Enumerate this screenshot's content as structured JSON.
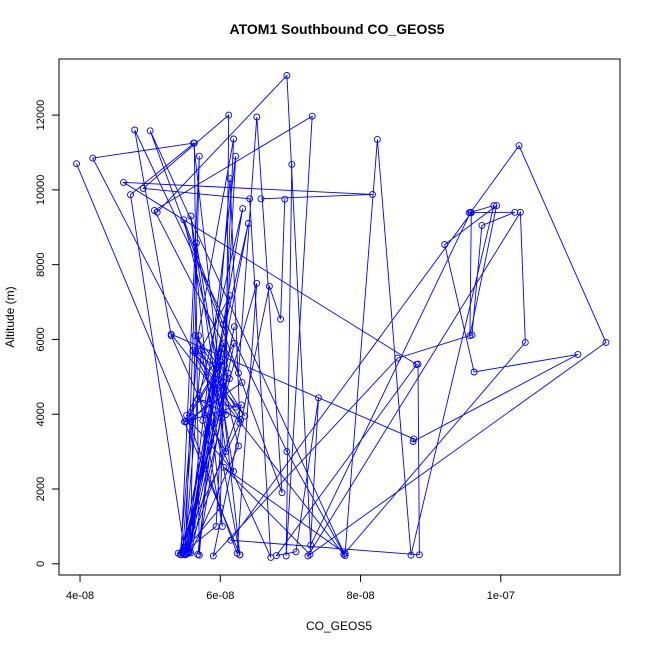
{
  "chart_data": {
    "type": "line",
    "title": "ATOM1 Southbound CO_GEOS5",
    "xlabel": "CO_GEOS5",
    "ylabel": "Altitude (m)",
    "xlim": [
      3.7e-08,
      1.17e-07
    ],
    "ylim": [
      -300,
      13500
    ],
    "x_ticks": [
      4e-08,
      6e-08,
      8e-08,
      1e-07
    ],
    "x_tick_labels": [
      "4e-08",
      "6e-08",
      "8e-08",
      "1e-07"
    ],
    "y_ticks": [
      0,
      2000,
      4000,
      6000,
      8000,
      10000,
      12000
    ],
    "y_tick_labels": [
      "0",
      "2000",
      "4000",
      "6000",
      "8000",
      "10000",
      "12000"
    ],
    "grid": false,
    "legend": "none",
    "colors": {
      "series": "#0000ff",
      "axis": "#000000",
      "background": "#ffffff"
    },
    "series": [
      {
        "x": [
          5.4e-08,
          6.28e-08,
          6.14e-08,
          5.7e-08,
          5.63e-08,
          4.72e-08,
          5.5e-08,
          6.06e-08,
          6e-08,
          5.46e-08,
          5.94e-08,
          6.22e-08,
          5.52e-08,
          5.8e-08,
          5.6e-08,
          5.95e-08,
          5.64e-08,
          6.19e-08,
          6.02e-08,
          5.58e-08,
          6.26e-08,
          5.48e-08,
          6.04e-08,
          5.57e-08,
          5.7e-08,
          5.44e-08,
          6.05e-08,
          5.52e-08,
          6.24e-08,
          6.52e-08,
          5.43e-08,
          5.69e-08,
          6.28e-08,
          5.73e-08,
          5.49e-08,
          6.32e-08,
          5.7e-08,
          6.03e-08,
          5.58e-08,
          6.08e-08,
          5.78e-08,
          6.4e-08,
          5.5e-08,
          5.66e-08,
          6.19e-08,
          5.58e-08,
          6.13e-08,
          5.64e-08,
          6.35e-08,
          5.61e-08,
          6.29e-08,
          5.68e-08,
          6.22e-08,
          5.71e-08,
          6.14e-08,
          5.75e-08,
          6.02e-08,
          5.55e-08,
          6.2e-08,
          5.51e-08,
          6.31e-08,
          5.61e-08,
          5.46e-08,
          6.11e-08,
          5.68e-08,
          6.01e-08,
          5.49e-08,
          6.3e-08,
          5.53e-08,
          6.2e-08,
          6.04e-08
        ],
        "y": [
          280,
          3760,
          10300,
          230,
          11250,
          9870,
          240,
          5300,
          1500,
          280,
          1000,
          10900,
          260,
          3500,
          1000,
          5250,
          5650,
          11360,
          3900,
          290,
          3150,
          9200,
          6400,
          330,
          10900,
          240,
          5900,
          3970,
          280,
          7500,
          250,
          6100,
          240,
          5700,
          250,
          9500,
          4500,
          1000,
          9300,
          3000,
          3990,
          9100,
          250,
          8580,
          2470,
          3800,
          4950,
          6100,
          3950,
          5700,
          3860,
          4400,
          4190,
          5700,
          7170,
          3830,
          5750,
          290,
          5900,
          3800,
          4850,
          3920,
          290,
          5100,
          250,
          5400,
          3800,
          4250,
          290,
          6340,
          4870
        ]
      },
      {
        "x": [
          3.95e-08,
          6.28e-08,
          5.62e-08,
          4.18e-08,
          6.08e-08,
          6.12e-08,
          4.9e-08,
          6.42e-08,
          6.72e-08,
          5.3e-08,
          4.78e-08,
          6.95e-08,
          7.78e-08,
          5e-08,
          6.88e-08,
          6.52e-08,
          6.26e-08,
          5.06e-08,
          7.31e-08,
          6.94e-08,
          7.02e-08
        ],
        "y": [
          10700,
          240,
          11250,
          10850,
          3990,
          12000,
          10040,
          9760,
          170,
          6100,
          11600,
          3000,
          220,
          11580,
          1900,
          11950,
          5100,
          9450,
          11970,
          210,
          10680
        ]
      },
      {
        "x": [
          6.58e-08,
          8.17e-08,
          4.62e-08,
          8.8e-08,
          6.8e-08,
          7.08e-08,
          7.4e-08,
          7.28e-08,
          6.05e-08,
          7.78e-08,
          8.24e-08,
          8.72e-08,
          9.9e-08,
          9.55e-08,
          1.02e-07,
          9.73e-08,
          9.59e-08,
          8.53e-08,
          5.9e-08,
          6.7e-08,
          6.86e-08,
          6.92e-08
        ],
        "y": [
          9760,
          9880,
          10200,
          5330,
          220,
          320,
          4440,
          250,
          2580,
          280,
          11350,
          230,
          9580,
          9390,
          9400,
          9050,
          6120,
          5500,
          210,
          7420,
          6540,
          9750
        ]
      },
      {
        "x": [
          5.1e-08,
          6.95e-08,
          7.29e-08,
          9.57e-08,
          1.026e-07,
          1.15e-07,
          7.25e-08,
          1.028e-07,
          1.035e-07,
          7.76e-08,
          5.3e-08,
          8.76e-08,
          8.75e-08,
          1.11e-07,
          9.62e-08,
          9.2e-08,
          9.94e-08,
          9.56e-08,
          9.58e-08,
          6.15e-08,
          8.84e-08,
          8.82e-08
        ],
        "y": [
          9400,
          13060,
          500,
          9400,
          11180,
          5920,
          210,
          9400,
          5920,
          250,
          6140,
          3340,
          3270,
          5600,
          5130,
          8540,
          9580,
          6100,
          9390,
          630,
          240,
          5340
        ]
      }
    ]
  }
}
